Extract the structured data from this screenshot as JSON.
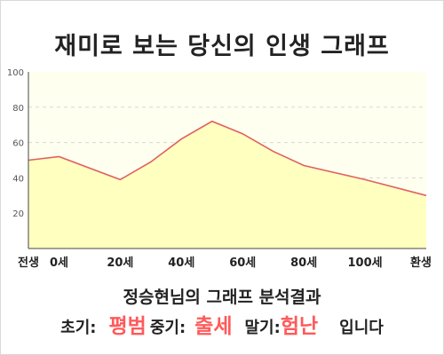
{
  "title": "재미로 보는 당신의 인생 그래프",
  "chart_data": {
    "type": "area",
    "title": "재미로 보는 당신의 인생 그래프",
    "x": [
      -10,
      0,
      20,
      30,
      40,
      50,
      60,
      70,
      80,
      100,
      120
    ],
    "values": [
      50,
      52,
      39,
      49,
      62,
      72,
      65,
      55,
      47,
      39,
      30
    ],
    "xticks": [
      {
        "x": -10,
        "label": "전생"
      },
      {
        "x": 0,
        "label": "0세"
      },
      {
        "x": 20,
        "label": "20세"
      },
      {
        "x": 40,
        "label": "40세"
      },
      {
        "x": 60,
        "label": "60세"
      },
      {
        "x": 80,
        "label": "80세"
      },
      {
        "x": 100,
        "label": "100세"
      },
      {
        "x": 120,
        "label": "환생"
      }
    ],
    "yticks": [
      20,
      40,
      60,
      80,
      100
    ],
    "ylim": [
      0,
      100
    ],
    "xlim": [
      -10,
      120
    ],
    "grid": true,
    "line_color": "#e06060",
    "fill_color": "#ffffc0"
  },
  "result": {
    "heading": "정승현님의 그래프 분석결과",
    "early_label": "초기:",
    "early_value": "평범",
    "middle_label": "중기:",
    "middle_value": "출세",
    "late_label": "말기:",
    "late_value": "험난",
    "ending": "입니다"
  },
  "colors": {
    "highlight": "#ff5a5a",
    "plot_background": "#fffff0",
    "grid": "#d8d8d8"
  }
}
